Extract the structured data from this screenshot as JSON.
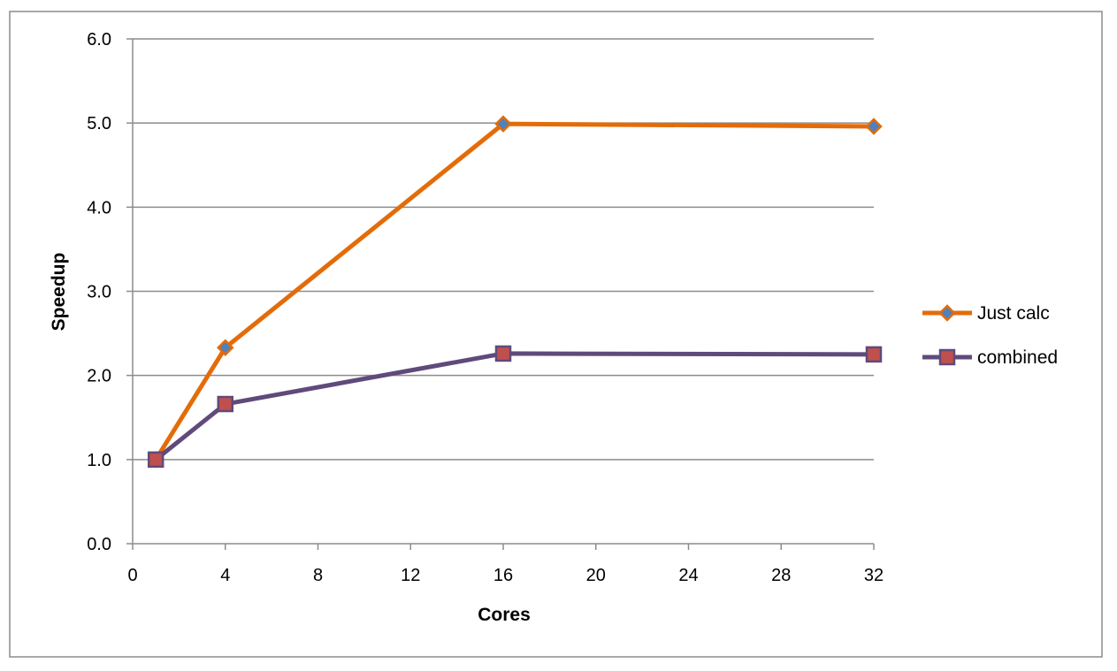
{
  "chart_data": {
    "type": "line",
    "title": "",
    "xlabel": "Cores",
    "ylabel": "Speedup",
    "xlim": [
      0,
      32
    ],
    "ylim": [
      0,
      6
    ],
    "x_ticks": [
      0,
      4,
      8,
      12,
      16,
      20,
      24,
      28,
      32
    ],
    "x_tick_labels": [
      "0",
      "4",
      "8",
      "12",
      "16",
      "20",
      "24",
      "28",
      "32"
    ],
    "y_ticks": [
      0,
      1,
      2,
      3,
      4,
      5,
      6
    ],
    "y_tick_labels": [
      "0.0",
      "1.0",
      "2.0",
      "3.0",
      "4.0",
      "5.0",
      "6.0"
    ],
    "grid": "horizontal",
    "legend_position": "right",
    "series": [
      {
        "name": "Just calc",
        "color": "#E36C09",
        "marker": "diamond",
        "marker_color": "#4F81BD",
        "x": [
          1,
          4,
          16,
          32
        ],
        "y": [
          1.0,
          2.33,
          4.99,
          4.96
        ]
      },
      {
        "name": "combined",
        "color": "#604A7B",
        "marker": "square",
        "marker_color": "#C0504D",
        "x": [
          1,
          4,
          16,
          32
        ],
        "y": [
          1.0,
          1.66,
          2.26,
          2.25
        ]
      }
    ]
  }
}
